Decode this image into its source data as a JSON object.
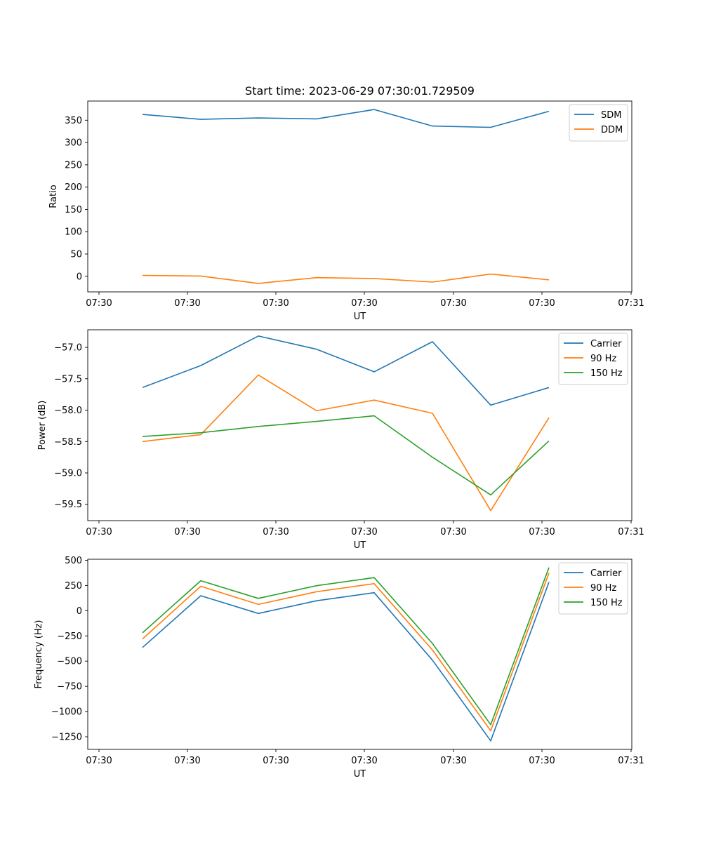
{
  "chart_data": [
    {
      "type": "line",
      "title": "Start time: 2023-06-29 07:30:01.729509",
      "xlabel": "UT",
      "ylabel": "Ratio",
      "x_tick_labels": [
        "07:30",
        "07:30",
        "07:30",
        "07:30",
        "07:30",
        "07:30",
        "07:30",
        "07:31"
      ],
      "y_ticks": [
        0,
        50,
        100,
        150,
        200,
        250,
        300,
        350
      ],
      "ylim": [
        -35,
        393
      ],
      "legend_position": "top-right",
      "grid": false,
      "series": [
        {
          "name": "SDM",
          "color": "#1f77b4",
          "values": [
            363,
            352,
            355,
            353,
            374,
            337,
            334,
            370
          ]
        },
        {
          "name": "DDM",
          "color": "#ff7f0e",
          "values": [
            2,
            0.5,
            -16,
            -3,
            -5,
            -13,
            5,
            -8
          ]
        }
      ]
    },
    {
      "type": "line",
      "title": "",
      "xlabel": "UT",
      "ylabel": "Power (dB)",
      "x_tick_labels": [
        "07:30",
        "07:30",
        "07:30",
        "07:30",
        "07:30",
        "07:30",
        "07:30",
        "07:31"
      ],
      "y_ticks": [
        -57.0,
        -57.5,
        -58.0,
        -58.5,
        -59.0,
        -59.5
      ],
      "y_tick_labels": [
        "−57.0",
        "−57.5",
        "−58.0",
        "−58.5",
        "−59.0",
        "−59.5"
      ],
      "ylim": [
        -59.76,
        -56.72
      ],
      "legend_position": "top-right",
      "grid": false,
      "series": [
        {
          "name": "Carrier",
          "color": "#1f77b4",
          "values": [
            -57.64,
            -57.29,
            -56.82,
            -57.03,
            -57.39,
            -56.91,
            -57.92,
            -57.64
          ]
        },
        {
          "name": "90 Hz",
          "color": "#ff7f0e",
          "values": [
            -58.5,
            -58.39,
            -57.44,
            -58.01,
            -57.84,
            -58.05,
            -59.6,
            -58.12
          ]
        },
        {
          "name": "150 Hz",
          "color": "#2ca02c",
          "values": [
            -58.42,
            -58.36,
            -58.26,
            -58.18,
            -58.09,
            -58.75,
            -59.35,
            -58.49
          ]
        }
      ]
    },
    {
      "type": "line",
      "title": "",
      "xlabel": "UT",
      "ylabel": "Frequency (Hz)",
      "x_tick_labels": [
        "07:30",
        "07:30",
        "07:30",
        "07:30",
        "07:30",
        "07:30",
        "07:30",
        "07:31"
      ],
      "y_ticks": [
        500,
        250,
        0,
        -250,
        -500,
        -750,
        -1000,
        -1250
      ],
      "y_tick_labels": [
        "500",
        "250",
        "0",
        "−250",
        "−500",
        "−750",
        "−1000",
        "−1250"
      ],
      "ylim": [
        -1375,
        510
      ],
      "legend_position": "top-right",
      "grid": false,
      "series": [
        {
          "name": "Carrier",
          "color": "#1f77b4",
          "values": [
            -365,
            148,
            -28,
            98,
            178,
            -490,
            -1290,
            283
          ]
        },
        {
          "name": "90 Hz",
          "color": "#ff7f0e",
          "values": [
            -280,
            242,
            62,
            188,
            268,
            -390,
            -1190,
            373
          ]
        },
        {
          "name": "150 Hz",
          "color": "#2ca02c",
          "values": [
            -220,
            297,
            122,
            248,
            328,
            -325,
            -1130,
            428
          ]
        }
      ]
    }
  ]
}
